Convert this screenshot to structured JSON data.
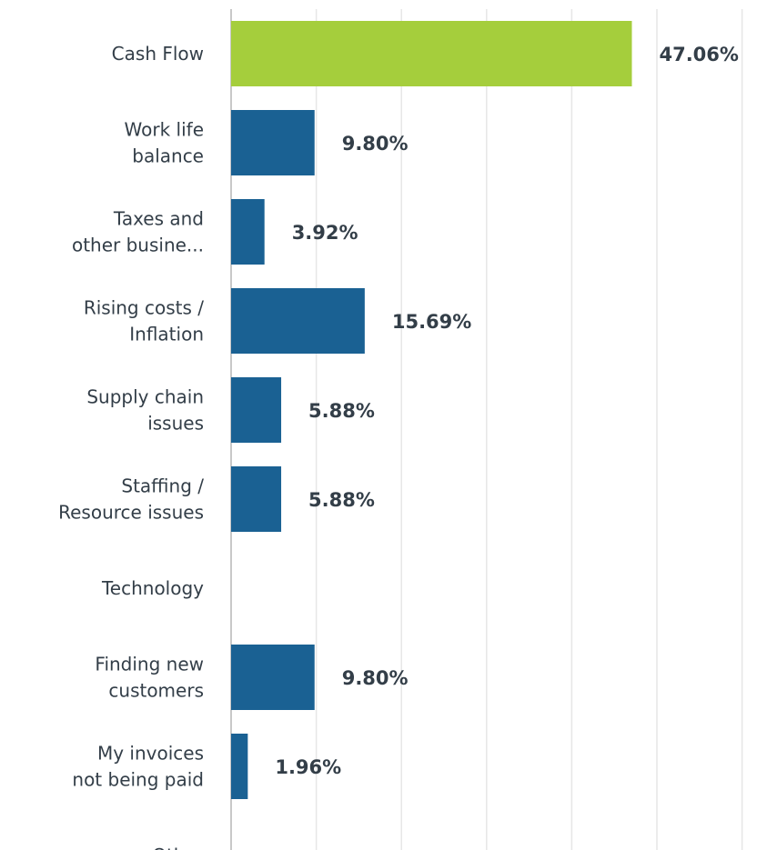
{
  "chart_data": {
    "type": "bar",
    "orientation": "horizontal",
    "categories": [
      [
        "Cash Flow"
      ],
      [
        "Work life",
        "balance"
      ],
      [
        "Taxes and",
        "other busine..."
      ],
      [
        "Rising costs /",
        "Inflation"
      ],
      [
        "Supply chain",
        "issues"
      ],
      [
        "Staffing /",
        "Resource issues"
      ],
      [
        "Technology"
      ],
      [
        "Finding new",
        "customers"
      ],
      [
        "My invoices",
        "not being paid"
      ],
      [
        "Other"
      ]
    ],
    "values": [
      47.06,
      9.8,
      3.92,
      15.69,
      5.88,
      5.88,
      0,
      9.8,
      1.96,
      0
    ],
    "value_labels": [
      "47.06%",
      "9.80%",
      "3.92%",
      "15.69%",
      "5.88%",
      "5.88%",
      "",
      "9.80%",
      "1.96%",
      ""
    ],
    "xlim": [
      0,
      60
    ],
    "grid": true,
    "highlight_index": 0,
    "colors": {
      "bar": "#1a6193",
      "highlight": "#a5ce3c",
      "grid": "#e6e6e6",
      "axis": "#c8c8c8",
      "text": "#333e48"
    }
  }
}
